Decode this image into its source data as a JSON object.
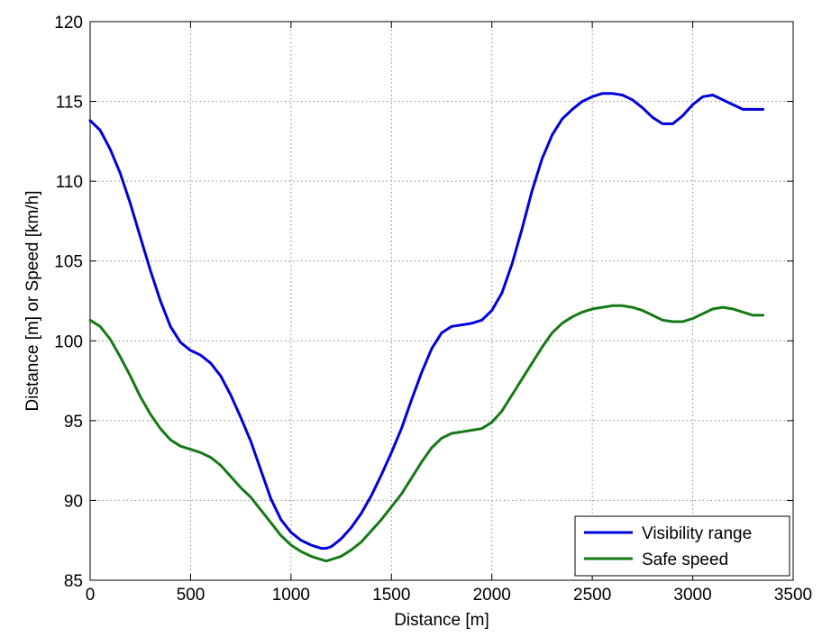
{
  "chart_data": {
    "type": "line",
    "title": "",
    "xlabel": "Distance [m]",
    "ylabel": "Distance [m] or Speed [km/h]",
    "xlim": [
      0,
      3500
    ],
    "ylim": [
      85,
      120
    ],
    "xticks": [
      "0",
      "500",
      "1000",
      "1500",
      "2000",
      "2500",
      "3000",
      "3500"
    ],
    "yticks": [
      "85",
      "90",
      "95",
      "100",
      "105",
      "110",
      "115",
      "120"
    ],
    "grid": true,
    "legend_position": "bottom-right",
    "series": [
      {
        "name": "Visibility range",
        "color": "#0000dd",
        "x": [
          0,
          50,
          100,
          150,
          200,
          250,
          300,
          350,
          400,
          450,
          500,
          550,
          600,
          650,
          700,
          750,
          800,
          850,
          900,
          950,
          1000,
          1050,
          1100,
          1150,
          1175,
          1200,
          1250,
          1300,
          1350,
          1400,
          1450,
          1500,
          1550,
          1600,
          1650,
          1700,
          1750,
          1800,
          1850,
          1900,
          1950,
          2000,
          2050,
          2100,
          2150,
          2200,
          2250,
          2300,
          2350,
          2400,
          2450,
          2500,
          2550,
          2600,
          2650,
          2700,
          2750,
          2800,
          2850,
          2900,
          2950,
          3000,
          3050,
          3100,
          3150,
          3200,
          3250,
          3300,
          3350
        ],
        "y": [
          113.8,
          113.2,
          112.0,
          110.5,
          108.6,
          106.5,
          104.4,
          102.5,
          100.9,
          99.9,
          99.4,
          99.1,
          98.6,
          97.8,
          96.6,
          95.2,
          93.7,
          91.9,
          90.1,
          88.8,
          88.0,
          87.5,
          87.2,
          87.0,
          87.0,
          87.1,
          87.6,
          88.3,
          89.2,
          90.3,
          91.6,
          93.0,
          94.5,
          96.3,
          98.0,
          99.5,
          100.5,
          100.9,
          101.0,
          101.1,
          101.3,
          101.9,
          103.0,
          104.8,
          107.0,
          109.4,
          111.4,
          112.9,
          113.9,
          114.5,
          115.0,
          115.3,
          115.5,
          115.5,
          115.4,
          115.1,
          114.6,
          114.0,
          113.6,
          113.6,
          114.1,
          114.8,
          115.3,
          115.4,
          115.1,
          114.8,
          114.5,
          114.5,
          114.5
        ]
      },
      {
        "name": "Safe speed",
        "color": "#157a15",
        "x": [
          0,
          50,
          100,
          150,
          200,
          250,
          300,
          350,
          400,
          450,
          500,
          550,
          600,
          650,
          700,
          750,
          800,
          850,
          900,
          950,
          1000,
          1050,
          1100,
          1150,
          1175,
          1200,
          1250,
          1300,
          1350,
          1400,
          1450,
          1500,
          1550,
          1600,
          1650,
          1700,
          1750,
          1800,
          1850,
          1900,
          1950,
          2000,
          2050,
          2100,
          2150,
          2200,
          2250,
          2300,
          2350,
          2400,
          2450,
          2500,
          2550,
          2600,
          2650,
          2700,
          2750,
          2800,
          2850,
          2900,
          2950,
          3000,
          3050,
          3100,
          3150,
          3200,
          3250,
          3300,
          3350
        ],
        "y": [
          101.3,
          100.9,
          100.1,
          99.0,
          97.8,
          96.5,
          95.4,
          94.5,
          93.8,
          93.4,
          93.2,
          93.0,
          92.7,
          92.2,
          91.5,
          90.8,
          90.2,
          89.4,
          88.6,
          87.8,
          87.2,
          86.8,
          86.5,
          86.3,
          86.2,
          86.3,
          86.5,
          86.9,
          87.4,
          88.1,
          88.8,
          89.6,
          90.4,
          91.4,
          92.4,
          93.3,
          93.9,
          94.2,
          94.3,
          94.4,
          94.5,
          94.9,
          95.6,
          96.6,
          97.6,
          98.6,
          99.6,
          100.5,
          101.1,
          101.5,
          101.8,
          102.0,
          102.1,
          102.2,
          102.2,
          102.1,
          101.9,
          101.6,
          101.3,
          101.2,
          101.2,
          101.4,
          101.7,
          102.0,
          102.1,
          102.0,
          101.8,
          101.6,
          101.6
        ]
      }
    ]
  }
}
